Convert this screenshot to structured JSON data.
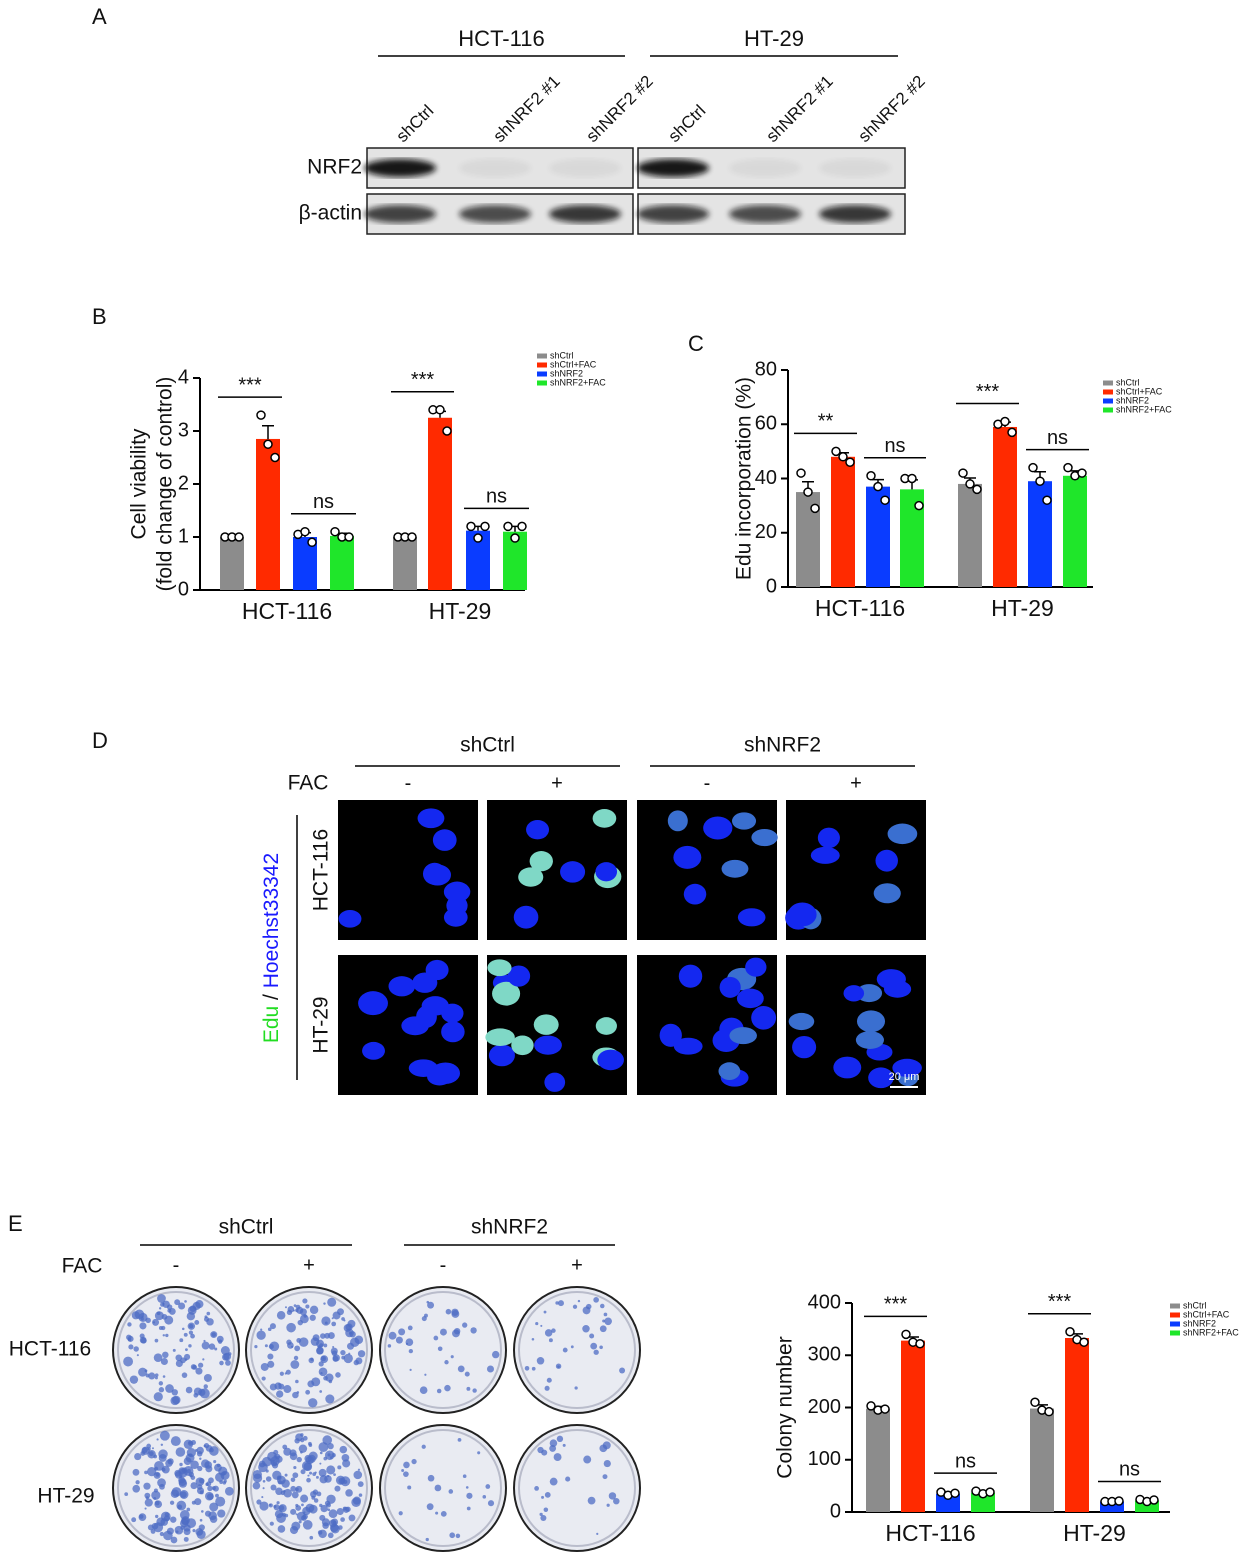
{
  "panel_labels": [
    "A",
    "B",
    "C",
    "D",
    "E"
  ],
  "blot": {
    "groups": [
      "HCT-116",
      "HT-29"
    ],
    "lanes": [
      "shCtrl",
      "shNRF2 #1",
      "shNRF2 #2",
      "shCtrl",
      "shNRF2 #1",
      "shNRF2 #2"
    ],
    "rows": [
      "NRF2",
      "β-actin"
    ]
  },
  "microscopy": {
    "groups": [
      "shCtrl",
      "shNRF2"
    ],
    "treatment": "FAC",
    "signs": [
      "-",
      "+",
      "-",
      "+"
    ],
    "rows": [
      "HCT-116",
      "HT-29"
    ],
    "stain": [
      "Edu",
      "/",
      "Hoechst33342"
    ],
    "scale_bar": "20 μm"
  },
  "colony": {
    "groups": [
      "shCtrl",
      "shNRF2"
    ],
    "treatment": "FAC",
    "signs": [
      "-",
      "+",
      "-",
      "+"
    ],
    "rows": [
      "HCT-116",
      "HT-29"
    ]
  },
  "chart_data": [
    {
      "type": "bar",
      "y_label": [
        "Cell viability",
        "(fold change of control)"
      ],
      "categories": [
        "HCT-116",
        "HT-29"
      ],
      "ylim": [
        0,
        4
      ],
      "yticks": [
        0,
        1,
        2,
        3,
        4
      ],
      "legend": "right",
      "series": [
        {
          "name": "shCtrl",
          "color": "#8c8c8c",
          "values": [
            1.0,
            1.0
          ],
          "errors": [
            0.02,
            0.02
          ],
          "points": [
            [
              1.0,
              1.0,
              1.0
            ],
            [
              1.0,
              1.0,
              1.0
            ]
          ]
        },
        {
          "name": "shCtrl+FAC",
          "color": "#ff2a00",
          "values": [
            2.85,
            3.25
          ],
          "errors": [
            0.25,
            0.12
          ],
          "points": [
            [
              3.3,
              2.75,
              2.5
            ],
            [
              3.4,
              3.4,
              3.0
            ]
          ]
        },
        {
          "name": "shNRF2",
          "color": "#0a3cff",
          "values": [
            1.0,
            1.12
          ],
          "errors": [
            0.08,
            0.08
          ],
          "points": [
            [
              1.05,
              1.1,
              0.9
            ],
            [
              1.2,
              0.98,
              1.2
            ]
          ]
        },
        {
          "name": "shNRF2+FAC",
          "color": "#1fe62a",
          "values": [
            1.02,
            1.1
          ],
          "errors": [
            0.05,
            0.1
          ],
          "points": [
            [
              1.1,
              1.0,
              1.0
            ],
            [
              1.2,
              0.98,
              1.2
            ]
          ]
        }
      ],
      "significance": [
        [
          "***",
          "ns"
        ],
        [
          "***",
          "ns"
        ]
      ]
    },
    {
      "type": "bar",
      "y_label": "Edu incorporation (%)",
      "categories": [
        "HCT-116",
        "HT-29"
      ],
      "ylim": [
        0,
        80
      ],
      "yticks": [
        0,
        20,
        40,
        60,
        80
      ],
      "legend": "right",
      "series": [
        {
          "name": "shCtrl",
          "color": "#8c8c8c",
          "values": [
            35,
            38
          ],
          "errors": [
            3.8,
            2.2
          ],
          "points": [
            [
              42,
              35,
              29
            ],
            [
              42,
              38,
              36
            ]
          ]
        },
        {
          "name": "shCtrl+FAC",
          "color": "#ff2a00",
          "values": [
            48,
            59
          ],
          "errors": [
            1.5,
            1.8
          ],
          "points": [
            [
              50,
              48,
              46
            ],
            [
              60,
              61,
              57
            ]
          ]
        },
        {
          "name": "shNRF2",
          "color": "#0a3cff",
          "values": [
            37,
            39
          ],
          "errors": [
            2.6,
            3.5
          ],
          "points": [
            [
              41,
              37,
              32
            ],
            [
              44,
              39,
              32
            ]
          ]
        },
        {
          "name": "shNRF2+FAC",
          "color": "#1fe62a",
          "values": [
            36,
            41
          ],
          "errors": [
            3.5,
            1.8
          ],
          "points": [
            [
              40,
              40,
              30
            ],
            [
              44,
              41,
              42
            ]
          ]
        }
      ],
      "significance": [
        [
          "**",
          "ns"
        ],
        [
          "***",
          "ns"
        ]
      ]
    },
    {
      "type": "bar",
      "y_label": "Colony number",
      "categories": [
        "HCT-116",
        "HT-29"
      ],
      "ylim": [
        0,
        400
      ],
      "yticks": [
        0,
        100,
        200,
        300,
        400
      ],
      "legend": "right",
      "series": [
        {
          "name": "shCtrl",
          "color": "#8c8c8c",
          "values": [
            198,
            198
          ],
          "errors": [
            4,
            7
          ],
          "points": [
            [
              203,
              195,
              197
            ],
            [
              210,
              195,
              192
            ]
          ]
        },
        {
          "name": "shCtrl+FAC",
          "color": "#ff2a00",
          "values": [
            328,
            333
          ],
          "errors": [
            7,
            8
          ],
          "points": [
            [
              340,
              325,
              322
            ],
            [
              345,
              330,
              325
            ]
          ]
        },
        {
          "name": "shNRF2",
          "color": "#0a3cff",
          "values": [
            35,
            20
          ],
          "errors": [
            3,
            1
          ],
          "points": [
            [
              38,
              32,
              36
            ],
            [
              20,
              20,
              21
            ]
          ]
        },
        {
          "name": "shNRF2+FAC",
          "color": "#1fe62a",
          "values": [
            37,
            22
          ],
          "errors": [
            2,
            2
          ],
          "points": [
            [
              40,
              35,
              38
            ],
            [
              24,
              20,
              23
            ]
          ]
        }
      ],
      "significance": [
        [
          "***",
          "ns"
        ],
        [
          "***",
          "ns"
        ]
      ]
    }
  ]
}
